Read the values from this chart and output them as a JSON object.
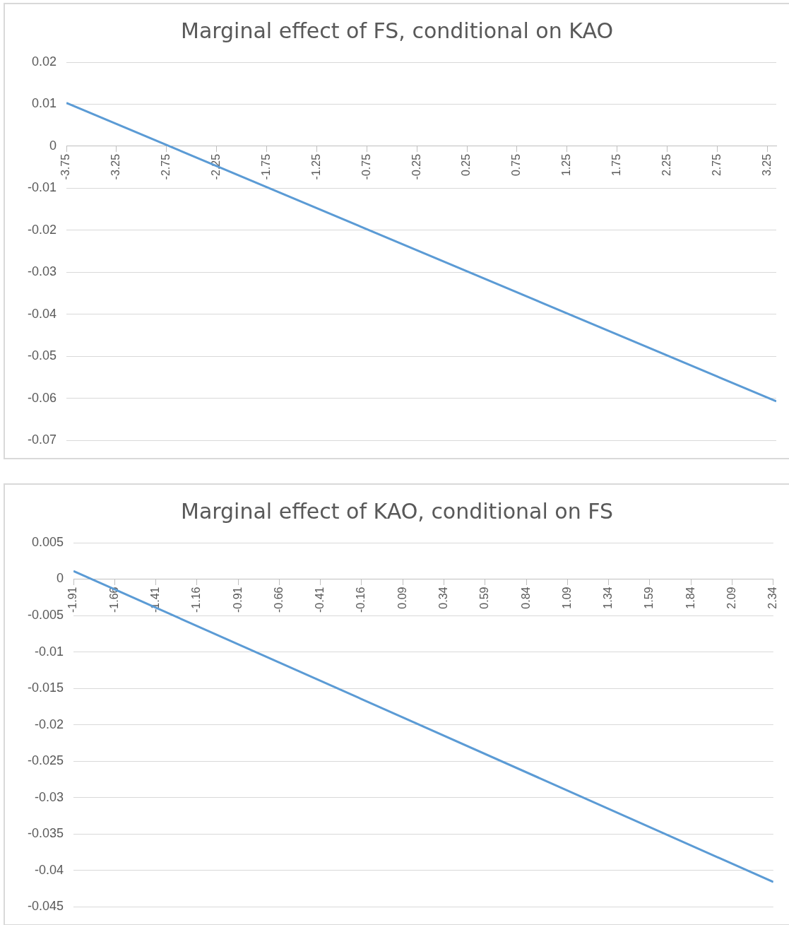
{
  "chart_data": [
    {
      "type": "line",
      "title": "Marginal effect of FS, conditional on KAO",
      "xlim": [
        -3.75,
        3.34
      ],
      "xticks": [
        -3.75,
        -3.25,
        -2.75,
        -2.25,
        -1.75,
        -1.25,
        -0.75,
        -0.25,
        0.25,
        0.75,
        1.25,
        1.75,
        2.25,
        2.75,
        3.25
      ],
      "ylim": [
        -0.07,
        0.02
      ],
      "yticks": [
        -0.07,
        -0.06,
        -0.05,
        -0.04,
        -0.03,
        -0.02,
        -0.01,
        0,
        0.01,
        0.02
      ],
      "grid": "y",
      "legend": false,
      "series": [
        {
          "color": "#5b9bd5",
          "x": [
            -3.75,
            3.34
          ],
          "values": [
            0.0103,
            -0.0607
          ]
        }
      ]
    },
    {
      "type": "line",
      "title": "Marginal effect of KAO, conditional on FS",
      "xlim": [
        -1.91,
        2.34
      ],
      "xticks": [
        -1.91,
        -1.66,
        -1.41,
        -1.16,
        -0.91,
        -0.66,
        -0.41,
        -0.16,
        0.09,
        0.34,
        0.59,
        0.84,
        1.09,
        1.34,
        1.59,
        1.84,
        2.09,
        2.34
      ],
      "ylim": [
        -0.045,
        0.005
      ],
      "yticks": [
        -0.045,
        -0.04,
        -0.035,
        -0.03,
        -0.025,
        -0.02,
        -0.015,
        -0.01,
        -0.005,
        0,
        0.005
      ],
      "grid": "y",
      "legend": false,
      "series": [
        {
          "color": "#5b9bd5",
          "x": [
            -1.91,
            2.34
          ],
          "values": [
            0.0011,
            -0.0416
          ]
        }
      ]
    }
  ]
}
